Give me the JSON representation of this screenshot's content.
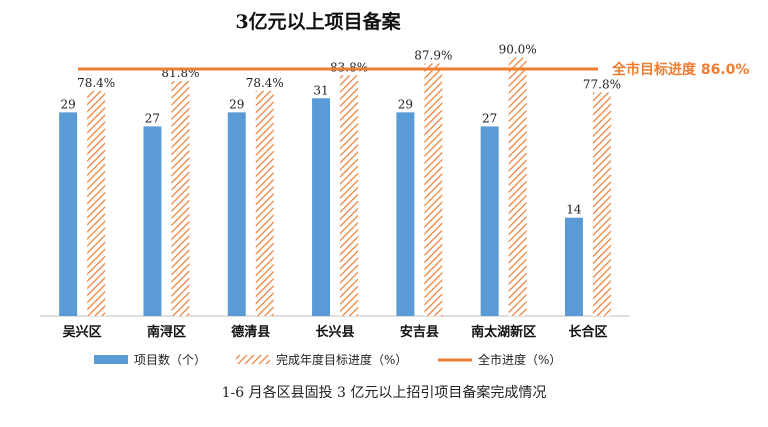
{
  "chart_data": {
    "type": "bar",
    "title": "3亿元以上项目备案",
    "categories": [
      "吴兴区",
      "南浔区",
      "德清县",
      "长兴县",
      "安吉县",
      "南太湖新区",
      "长合区"
    ],
    "series": [
      {
        "name": "项目数（个）",
        "values": [
          29,
          27,
          29,
          31,
          29,
          27,
          14
        ],
        "labels": [
          "29",
          "27",
          "29",
          "31",
          "29",
          "27",
          "14"
        ],
        "color": "#5b9bd5",
        "axis": "left"
      },
      {
        "name": "完成年度目标进度（%）",
        "values": [
          78.4,
          81.8,
          78.4,
          83.8,
          87.9,
          90.0,
          77.8
        ],
        "labels": [
          "78.4%",
          "81.8%",
          "78.4%",
          "83.8%",
          "87.9%",
          "90.0%",
          "77.8%"
        ],
        "color": "#ed7d31",
        "pattern": "hatch",
        "axis": "right"
      }
    ],
    "target_line": {
      "name": "全市进度（%）",
      "value": 86.0,
      "label": "全市目标进度 86.0%",
      "color": "#ed7d31"
    },
    "left_axis": {
      "ylim": [
        0,
        45
      ]
    },
    "right_axis": {
      "ylim": [
        0,
        110
      ]
    },
    "grid": false,
    "legend_position": "bottom"
  },
  "caption": "1-6 月各区县固投 3 亿元以上招引项目备案完成情况"
}
